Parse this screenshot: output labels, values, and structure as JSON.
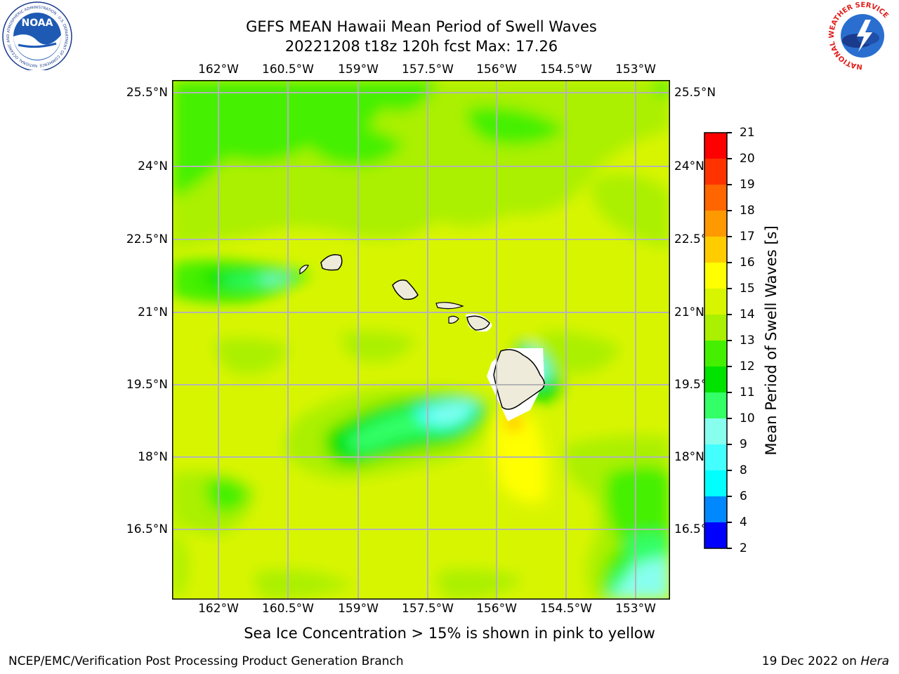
{
  "title": {
    "line1": "GEFS MEAN Hawaii Mean Period of Swell Waves",
    "line2": "20221208 t18z 120h fcst   Max: 17.26"
  },
  "map": {
    "lon_ticks": [
      "162°W",
      "160.5°W",
      "159°W",
      "157.5°W",
      "156°W",
      "154.5°W",
      "153°W"
    ],
    "lat_ticks": [
      "25.5°N",
      "24°N",
      "22.5°N",
      "21°N",
      "19.5°N",
      "18°N",
      "16.5°N"
    ],
    "land_color": "#eeebdb"
  },
  "colorbar": {
    "label": "Mean Period of Swell Waves [s]",
    "ticks": [
      "21",
      "20",
      "19",
      "18",
      "17",
      "16",
      "15",
      "14",
      "13",
      "12",
      "11",
      "10",
      "9",
      "8",
      "6",
      "4",
      "2"
    ],
    "colors_top_to_bottom": [
      "#ff0000",
      "#ff3300",
      "#ff6600",
      "#ff9900",
      "#ffcc00",
      "#ffff00",
      "#d8f500",
      "#aaf000",
      "#44f000",
      "#00e200",
      "#33ff66",
      "#88ffee",
      "#44ffff",
      "#00ffff",
      "#0088ff",
      "#0000ff"
    ]
  },
  "logos": {
    "noaa_text": "NOAA",
    "noaa_ring": "NATIONAL OCEANIC AND ATMOSPHERIC ADMINISTRATION · U.S. DEPARTMENT OF COMMERCE",
    "nws_ring": "NATIONAL WEATHER SERVICE"
  },
  "footer": {
    "note": "Sea Ice Concentration > 15% is shown in pink to yellow",
    "left": "NCEP/EMC/Verification Post Processing Product Generation Branch",
    "right_date": "19 Dec 2022 on ",
    "right_host": "Hera"
  }
}
